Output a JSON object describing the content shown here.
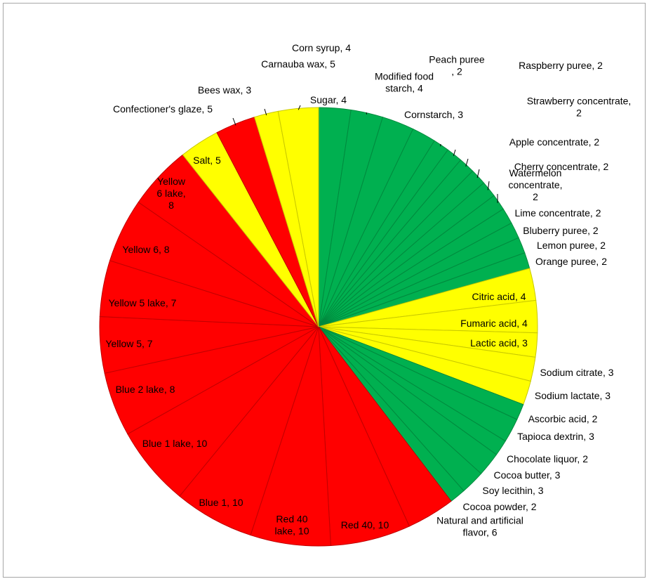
{
  "chart_data": {
    "type": "pie",
    "title": "",
    "legend": "none",
    "colors": {
      "green": "#00b050",
      "yellow": "#ffff00",
      "red": "#ff0000",
      "slice_border_green": "#008a3e",
      "slice_border_yellow": "#c8c800",
      "slice_border_red": "#c00000"
    },
    "slices": [
      {
        "label": "Sugar, 4",
        "name": "Sugar",
        "value": 4,
        "color": "green"
      },
      {
        "label": "Corn syrup, 4",
        "name": "Corn syrup",
        "value": 4,
        "color": "green"
      },
      {
        "label": "Modified food starch, 4",
        "name": "Modified food starch",
        "value": 4,
        "color": "green"
      },
      {
        "label": "Cornstarch, 3",
        "name": "Cornstarch",
        "value": 3,
        "color": "green"
      },
      {
        "label": "Peach puree , 2",
        "name": "Peach puree",
        "value": 2,
        "color": "green"
      },
      {
        "label": "Raspberry puree, 2",
        "name": "Raspberry puree",
        "value": 2,
        "color": "green"
      },
      {
        "label": "Strawberry concentrate, 2",
        "name": "Strawberry concentrate",
        "value": 2,
        "color": "green"
      },
      {
        "label": "Apple concentrate, 2",
        "name": "Apple concentrate",
        "value": 2,
        "color": "green"
      },
      {
        "label": "Cherry concentrate, 2",
        "name": "Cherry concentrate",
        "value": 2,
        "color": "green"
      },
      {
        "label": "Watermelon concentrate, 2",
        "name": "Watermelon concentrate",
        "value": 2,
        "color": "green"
      },
      {
        "label": "Lime concentrate, 2",
        "name": "Lime concentrate",
        "value": 2,
        "color": "green"
      },
      {
        "label": "Bluberry puree, 2",
        "name": "Bluberry puree",
        "value": 2,
        "color": "green"
      },
      {
        "label": "Lemon puree, 2",
        "name": "Lemon puree",
        "value": 2,
        "color": "green"
      },
      {
        "label": "Orange puree, 2",
        "name": "Orange puree",
        "value": 2,
        "color": "green"
      },
      {
        "label": "Citric acid, 4",
        "name": "Citric acid",
        "value": 4,
        "color": "yellow"
      },
      {
        "label": "Fumaric acid, 4",
        "name": "Fumaric acid",
        "value": 4,
        "color": "yellow"
      },
      {
        "label": "Lactic acid, 3",
        "name": "Lactic acid",
        "value": 3,
        "color": "yellow"
      },
      {
        "label": "Sodium citrate, 3",
        "name": "Sodium citrate",
        "value": 3,
        "color": "yellow"
      },
      {
        "label": "Sodium lactate, 3",
        "name": "Sodium lactate",
        "value": 3,
        "color": "yellow"
      },
      {
        "label": "Ascorbic acid, 2",
        "name": "Ascorbic acid",
        "value": 2,
        "color": "green"
      },
      {
        "label": "Tapioca dextrin, 3",
        "name": "Tapioca dextrin",
        "value": 3,
        "color": "green"
      },
      {
        "label": "Chocolate liquor, 2",
        "name": "Chocolate liquor",
        "value": 2,
        "color": "green"
      },
      {
        "label": "Cocoa butter, 3",
        "name": "Cocoa butter",
        "value": 3,
        "color": "green"
      },
      {
        "label": "Soy lecithin, 3",
        "name": "Soy lecithin",
        "value": 3,
        "color": "green"
      },
      {
        "label": "Cocoa powder, 2",
        "name": "Cocoa powder",
        "value": 2,
        "color": "green"
      },
      {
        "label": "Natural and artificial flavor, 6",
        "name": "Natural and artificial flavor",
        "value": 6,
        "color": "red"
      },
      {
        "label": "Red 40, 10",
        "name": "Red 40",
        "value": 10,
        "color": "red"
      },
      {
        "label": "Red 40 lake, 10",
        "name": "Red 40 lake",
        "value": 10,
        "color": "red"
      },
      {
        "label": "Blue 1, 10",
        "name": "Blue 1",
        "value": 10,
        "color": "red"
      },
      {
        "label": "Blue 1 lake, 10",
        "name": "Blue 1 lake",
        "value": 10,
        "color": "red"
      },
      {
        "label": "Blue 2 lake, 8",
        "name": "Blue 2 lake",
        "value": 8,
        "color": "red"
      },
      {
        "label": "Yellow 5, 7",
        "name": "Yellow 5",
        "value": 7,
        "color": "red"
      },
      {
        "label": "Yellow 5 lake, 7",
        "name": "Yellow 5 lake",
        "value": 7,
        "color": "red"
      },
      {
        "label": "Yellow 6, 8",
        "name": "Yellow 6",
        "value": 8,
        "color": "red"
      },
      {
        "label": "Yellow 6 lake, 8",
        "name": "Yellow 6 lake",
        "value": 8,
        "color": "red"
      },
      {
        "label": "Salt, 5",
        "name": "Salt",
        "value": 5,
        "color": "yellow"
      },
      {
        "label": "Confectioner's glaze, 5",
        "name": "Confectioner's glaze",
        "value": 5,
        "color": "red"
      },
      {
        "label": "Bees wax, 3",
        "name": "Bees wax",
        "value": 3,
        "color": "yellow"
      },
      {
        "label": "Carnauba wax, 5",
        "name": "Carnauba wax",
        "value": 5,
        "color": "yellow"
      }
    ]
  }
}
